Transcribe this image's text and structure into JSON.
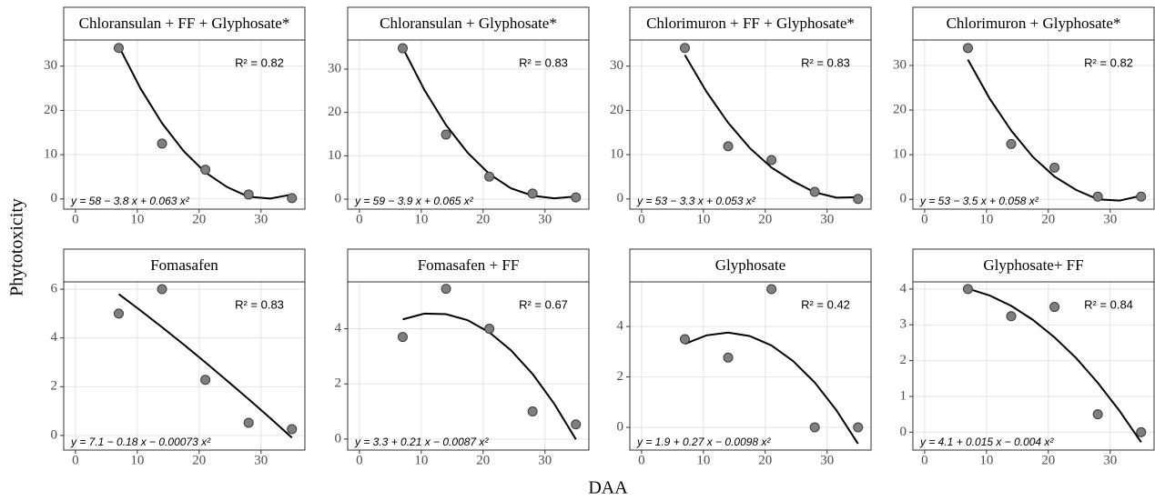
{
  "axis_labels": {
    "x": "DAA",
    "y": "Phytotoxicity"
  },
  "chart_data": [
    {
      "type": "scatter",
      "title": "Chloransulan + FF + Glyphosate*",
      "x": [
        7,
        14,
        21,
        28,
        35
      ],
      "values": [
        34.1,
        12.5,
        6.6,
        1.0,
        0.2
      ],
      "fit": {
        "x": [
          7,
          10.5,
          14,
          17.5,
          21,
          24.5,
          28,
          31.5,
          35
        ],
        "values": [
          34.5,
          25.0,
          17.1,
          10.8,
          6.0,
          2.7,
          0.5,
          0.1,
          1.0
        ]
      },
      "r2_label": "R² = 0.82",
      "equation": "y = 58 − 3.8 x + 0.063 x²",
      "xlim": [
        -1.9,
        37.1
      ],
      "xticks": [
        0,
        10,
        20,
        30
      ],
      "ylim": [
        -2.3,
        35.9
      ],
      "yticks": [
        0,
        10,
        20,
        30
      ],
      "grid": true,
      "color": "#7f7f7f"
    },
    {
      "type": "scatter",
      "title": "Chloransulan + Glyphosate*",
      "x": [
        7,
        14,
        21,
        28,
        35
      ],
      "values": [
        34.8,
        14.9,
        5.2,
        1.3,
        0.4
      ],
      "fit": {
        "x": [
          7,
          10.5,
          14,
          17.5,
          21,
          24.5,
          28,
          31.5,
          35
        ],
        "values": [
          34.9,
          25.2,
          17.1,
          10.7,
          5.8,
          2.5,
          0.8,
          0.2,
          0.6
        ]
      },
      "r2_label": "R² = 0.83",
      "equation": "y = 59 − 3.9 x + 0.065 x²",
      "xlim": [
        -1.9,
        37.1
      ],
      "xticks": [
        0,
        10,
        20,
        30
      ],
      "ylim": [
        -2.3,
        36.7
      ],
      "yticks": [
        0,
        10,
        20,
        30
      ],
      "grid": true,
      "color": "#7f7f7f"
    },
    {
      "type": "scatter",
      "title": "Chlorimuron + FF + Glyphosate*",
      "x": [
        7,
        14,
        21,
        28,
        35
      ],
      "values": [
        34.1,
        11.9,
        8.8,
        1.6,
        0
      ],
      "fit": {
        "x": [
          7,
          10.5,
          14,
          17.5,
          21,
          24.5,
          28,
          31.5,
          35
        ],
        "values": [
          32.5,
          24.2,
          17.2,
          11.5,
          7.1,
          4.0,
          1.5,
          0.3,
          0.4
        ]
      },
      "r2_label": "R² = 0.83",
      "equation": "y = 53 − 3.3 x + 0.053 x²",
      "xlim": [
        -1.9,
        37.1
      ],
      "xticks": [
        0,
        10,
        20,
        30
      ],
      "ylim": [
        -2.3,
        35.9
      ],
      "yticks": [
        0,
        10,
        20,
        30
      ],
      "grid": true,
      "color": "#7f7f7f"
    },
    {
      "type": "scatter",
      "title": "Chlorimuron + Glyphosate*",
      "x": [
        7,
        14,
        21,
        28,
        35
      ],
      "values": [
        33.9,
        12.4,
        7.1,
        0.6,
        0.6
      ],
      "fit": {
        "x": [
          7,
          10.5,
          14,
          17.5,
          21,
          24.5,
          28,
          31.5,
          35
        ],
        "values": [
          31.3,
          22.6,
          15.4,
          9.5,
          5.1,
          2.1,
          0,
          -0.3,
          0.8
        ]
      },
      "r2_label": "R² = 0.82",
      "equation": "y = 53 − 3.5 x + 0.058 x²",
      "xlim": [
        -1.9,
        37.1
      ],
      "xticks": [
        0,
        10,
        20,
        30
      ],
      "ylim": [
        -2.2,
        35.7
      ],
      "yticks": [
        0,
        10,
        20,
        30
      ],
      "grid": true,
      "color": "#7f7f7f"
    },
    {
      "type": "scatter",
      "title": "Fomasafen",
      "x": [
        7,
        14,
        21,
        28,
        35
      ],
      "values": [
        5.0,
        6.0,
        2.28,
        0.52,
        0.26
      ],
      "fit": {
        "x": [
          7,
          10.5,
          14,
          17.5,
          21,
          24.5,
          28,
          31.5,
          35
        ],
        "values": [
          5.8,
          5.13,
          4.44,
          3.73,
          3.0,
          2.25,
          1.49,
          0.71,
          -0.09
        ]
      },
      "r2_label": "R² = 0.83",
      "equation": "y = 7.1 − 0.18 x − 0.00073 x²",
      "xlim": [
        -1.9,
        37.1
      ],
      "xticks": [
        0,
        10,
        20,
        30
      ],
      "ylim": [
        -0.6,
        6.3
      ],
      "yticks": [
        0,
        2,
        4,
        6
      ],
      "grid": true,
      "color": "#7f7f7f"
    },
    {
      "type": "scatter",
      "title": "Fomasafen + FF",
      "x": [
        7,
        14,
        21,
        28,
        35
      ],
      "values": [
        3.7,
        5.45,
        4.0,
        1.0,
        0.53
      ],
      "fit": {
        "x": [
          7,
          10.5,
          14,
          17.5,
          21,
          24.5,
          28,
          31.5,
          35
        ],
        "values": [
          4.34,
          4.55,
          4.53,
          4.31,
          3.87,
          3.22,
          2.36,
          1.28,
          -0.01
        ]
      },
      "r2_label": "R² = 0.67",
      "equation": "y = 3.3 + 0.21 x − 0.0087 x²",
      "xlim": [
        -1.9,
        37.1
      ],
      "xticks": [
        0,
        10,
        20,
        30
      ],
      "ylim": [
        -0.4,
        5.7
      ],
      "yticks": [
        0,
        2,
        4
      ],
      "grid": true,
      "color": "#7f7f7f"
    },
    {
      "type": "scatter",
      "title": "Glyphosate",
      "x": [
        7,
        14,
        21,
        28,
        35
      ],
      "values": [
        3.5,
        2.77,
        5.48,
        0,
        0
      ],
      "fit": {
        "x": [
          7,
          10.5,
          14,
          17.5,
          21,
          24.5,
          28,
          31.5,
          35
        ],
        "values": [
          3.31,
          3.65,
          3.76,
          3.62,
          3.25,
          2.63,
          1.78,
          0.68,
          -0.65
        ]
      },
      "r2_label": "R² = 0.42",
      "equation": "y = 1.9 + 0.27 x − 0.0098 x²",
      "xlim": [
        -1.9,
        37.1
      ],
      "xticks": [
        0,
        10,
        20,
        30
      ],
      "ylim": [
        -0.9,
        5.77
      ],
      "yticks": [
        0,
        2,
        4
      ],
      "grid": true,
      "color": "#7f7f7f"
    },
    {
      "type": "scatter",
      "title": "Glyphosate+ FF",
      "x": [
        7,
        14,
        21,
        28,
        35
      ],
      "values": [
        4.0,
        3.24,
        3.5,
        0.5,
        0
      ],
      "fit": {
        "x": [
          7,
          10.5,
          14,
          17.5,
          21,
          24.5,
          28,
          31.5,
          35
        ],
        "values": [
          4.01,
          3.82,
          3.53,
          3.14,
          2.65,
          2.07,
          1.38,
          0.6,
          -0.28
        ]
      },
      "r2_label": "R² = 0.84",
      "equation": "y = 4.1 + 0.015 x − 0.004 x²",
      "xlim": [
        -1.9,
        37.1
      ],
      "xticks": [
        0,
        10,
        20,
        30
      ],
      "ylim": [
        -0.5,
        4.2
      ],
      "yticks": [
        0,
        1,
        2,
        3,
        4
      ],
      "grid": true,
      "color": "#7f7f7f"
    }
  ]
}
